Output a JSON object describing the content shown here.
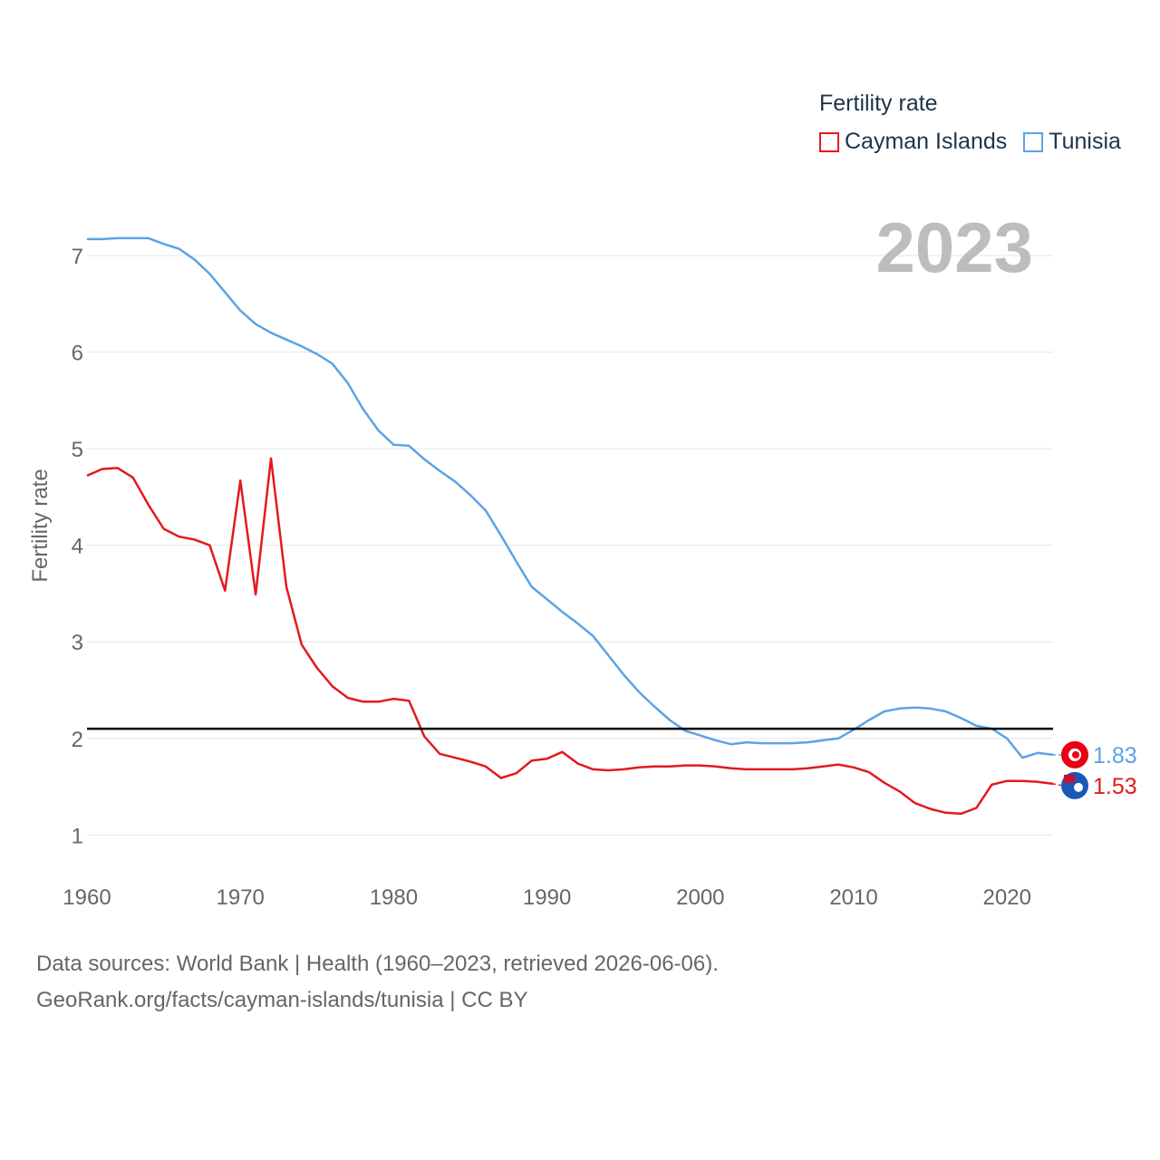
{
  "legend": {
    "title": "Fertility rate",
    "items": [
      {
        "label": "Cayman Islands",
        "color": "#e31a1c"
      },
      {
        "label": "Tunisia",
        "color": "#5ba3e6"
      }
    ]
  },
  "year_label": "2023",
  "footer": {
    "line1": "Data sources: World Bank | Health (1960–2023, retrieved 2026-06-06).",
    "line2": "GeoRank.org/facts/cayman-islands/tunisia | CC BY"
  },
  "chart_data": {
    "type": "line",
    "title": "Fertility rate",
    "xlabel": "",
    "ylabel": "Fertility rate",
    "xlim": [
      1960,
      2023
    ],
    "ylim": [
      0.75,
      7.3
    ],
    "x_ticks": [
      1960,
      1970,
      1980,
      1990,
      2000,
      2010,
      2020
    ],
    "y_ticks": [
      1,
      2,
      3,
      4,
      5,
      6,
      7
    ],
    "grid": true,
    "reference_line": {
      "y": 2.1,
      "color": "#000000"
    },
    "x": [
      1960,
      1961,
      1962,
      1963,
      1964,
      1965,
      1966,
      1967,
      1968,
      1969,
      1970,
      1971,
      1972,
      1973,
      1974,
      1975,
      1976,
      1977,
      1978,
      1979,
      1980,
      1981,
      1982,
      1983,
      1984,
      1985,
      1986,
      1987,
      1988,
      1989,
      1990,
      1991,
      1992,
      1993,
      1994,
      1995,
      1996,
      1997,
      1998,
      1999,
      2000,
      2001,
      2002,
      2003,
      2004,
      2005,
      2006,
      2007,
      2008,
      2009,
      2010,
      2011,
      2012,
      2013,
      2014,
      2015,
      2016,
      2017,
      2018,
      2019,
      2020,
      2021,
      2022,
      2023
    ],
    "series": [
      {
        "name": "Cayman Islands",
        "color": "#e31a1c",
        "end_label": "1.53",
        "values": [
          4.72,
          4.79,
          4.8,
          4.7,
          4.42,
          4.17,
          4.09,
          4.06,
          4.0,
          3.53,
          4.67,
          3.49,
          4.9,
          3.57,
          2.97,
          2.73,
          2.54,
          2.42,
          2.38,
          2.38,
          2.41,
          2.39,
          2.02,
          1.84,
          1.8,
          1.76,
          1.71,
          1.59,
          1.64,
          1.77,
          1.79,
          1.86,
          1.74,
          1.68,
          1.67,
          1.68,
          1.7,
          1.71,
          1.71,
          1.72,
          1.72,
          1.71,
          1.69,
          1.68,
          1.68,
          1.68,
          1.68,
          1.69,
          1.71,
          1.73,
          1.7,
          1.65,
          1.54,
          1.45,
          1.33,
          1.27,
          1.23,
          1.22,
          1.28,
          1.52,
          1.56,
          1.56,
          1.55,
          1.53
        ]
      },
      {
        "name": "Tunisia",
        "color": "#5ba3e6",
        "end_label": "1.83",
        "values": [
          7.17,
          7.17,
          7.18,
          7.18,
          7.18,
          7.12,
          7.07,
          6.96,
          6.81,
          6.62,
          6.43,
          6.29,
          6.2,
          6.13,
          6.06,
          5.98,
          5.88,
          5.68,
          5.41,
          5.19,
          5.04,
          5.03,
          4.89,
          4.77,
          4.66,
          4.52,
          4.36,
          4.1,
          3.83,
          3.57,
          3.44,
          3.31,
          3.19,
          3.06,
          2.86,
          2.66,
          2.48,
          2.33,
          2.19,
          2.08,
          2.03,
          1.98,
          1.94,
          1.96,
          1.95,
          1.95,
          1.95,
          1.96,
          1.98,
          2.0,
          2.09,
          2.19,
          2.28,
          2.31,
          2.32,
          2.31,
          2.28,
          2.21,
          2.13,
          2.1,
          2.0,
          1.8,
          1.85,
          1.83
        ]
      }
    ]
  }
}
